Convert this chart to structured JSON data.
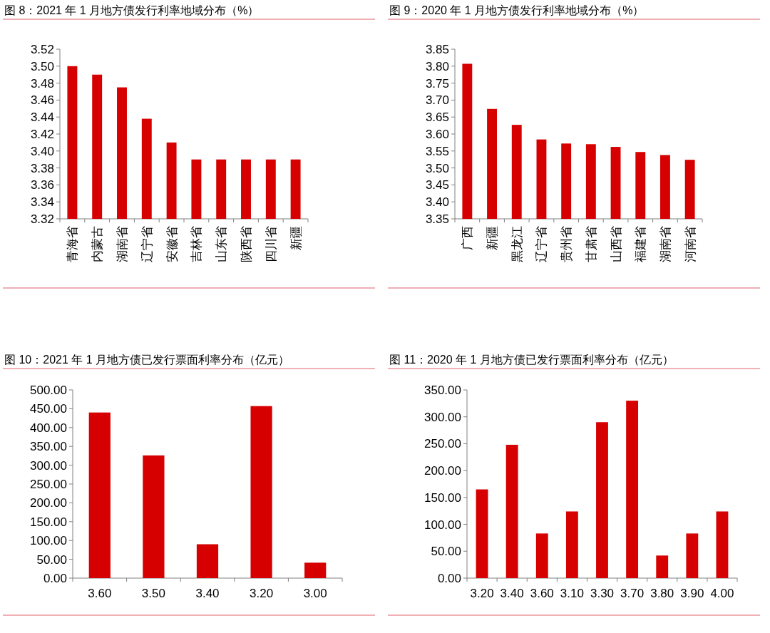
{
  "chart_data": [
    {
      "type": "bar",
      "title": "图 8：2021 年 1 月地方债发行利率地域分布（%）",
      "categories": [
        "青海省",
        "内蒙古",
        "湖南省",
        "辽宁省",
        "安徽省",
        "吉林省",
        "山东省",
        "陕西省",
        "四川省",
        "新疆"
      ],
      "values": [
        3.5,
        3.49,
        3.475,
        3.438,
        3.41,
        3.39,
        3.39,
        3.39,
        3.39,
        3.39
      ],
      "color": "#d70000",
      "ylim": [
        3.32,
        3.52
      ],
      "yticks": [
        3.32,
        3.34,
        3.36,
        3.38,
        {
          "value": 3.4,
          "label": "3.40"
        },
        3.42,
        3.44,
        3.46,
        3.48,
        {
          "value": 3.5,
          "label": "3.50"
        },
        3.52
      ]
    },
    {
      "type": "bar",
      "title": "图 9：2020 年 1 月地方债发行利率地域分布（%）",
      "categories": [
        "广西",
        "新疆",
        "黑龙江",
        "辽宁省",
        "贵州省",
        "甘肃省",
        "山西省",
        "福建省",
        "湖南省",
        "河南省"
      ],
      "values": [
        3.807,
        3.674,
        3.627,
        3.584,
        3.572,
        3.57,
        3.562,
        3.547,
        3.538,
        3.524
      ],
      "color": "#d70000",
      "ylim": [
        3.35,
        3.85
      ],
      "yticks": [
        3.35,
        {
          "value": 3.4,
          "label": "3.40"
        },
        3.45,
        {
          "value": 3.5,
          "label": "3.50"
        },
        3.55,
        {
          "value": 3.6,
          "label": "3.60"
        },
        3.65,
        {
          "value": 3.7,
          "label": "3.70"
        },
        3.75,
        {
          "value": 3.8,
          "label": "3.80"
        },
        3.85
      ]
    },
    {
      "type": "bar",
      "title": "图 10：2021 年 1 月地方债已发行票面利率分布（亿元）",
      "categories": [
        "3.60",
        "3.50",
        "3.40",
        "3.20",
        "3.00"
      ],
      "values": [
        440,
        326,
        90,
        457,
        41
      ],
      "color": "#d70000",
      "ylim": [
        0,
        500
      ],
      "yticks": [
        {
          "value": 0,
          "label": "0.00"
        },
        {
          "value": 50,
          "label": "50.00"
        },
        {
          "value": 100,
          "label": "100.00"
        },
        {
          "value": 150,
          "label": "150.00"
        },
        {
          "value": 200,
          "label": "200.00"
        },
        {
          "value": 250,
          "label": "250.00"
        },
        {
          "value": 300,
          "label": "300.00"
        },
        {
          "value": 350,
          "label": "350.00"
        },
        {
          "value": 400,
          "label": "400.00"
        },
        {
          "value": 450,
          "label": "450.00"
        },
        {
          "value": 500,
          "label": "500.00"
        }
      ]
    },
    {
      "type": "bar",
      "title": "图 11：2020 年 1 月地方债已发行票面利率分布（亿元）",
      "categories": [
        "3.20",
        "3.40",
        "3.60",
        "3.10",
        "3.30",
        "3.70",
        "3.80",
        "3.90",
        "4.00"
      ],
      "values": [
        165,
        248,
        83,
        124,
        290,
        330,
        42,
        83,
        124
      ],
      "color": "#d70000",
      "ylim": [
        0,
        350
      ],
      "yticks": [
        {
          "value": 0,
          "label": "0.00"
        },
        {
          "value": 50,
          "label": "50.00"
        },
        {
          "value": 100,
          "label": "100.00"
        },
        {
          "value": 150,
          "label": "150.00"
        },
        {
          "value": 200,
          "label": "200.00"
        },
        {
          "value": 250,
          "label": "250.00"
        },
        {
          "value": 300,
          "label": "300.00"
        },
        {
          "value": 350,
          "label": "350.00"
        }
      ]
    }
  ]
}
